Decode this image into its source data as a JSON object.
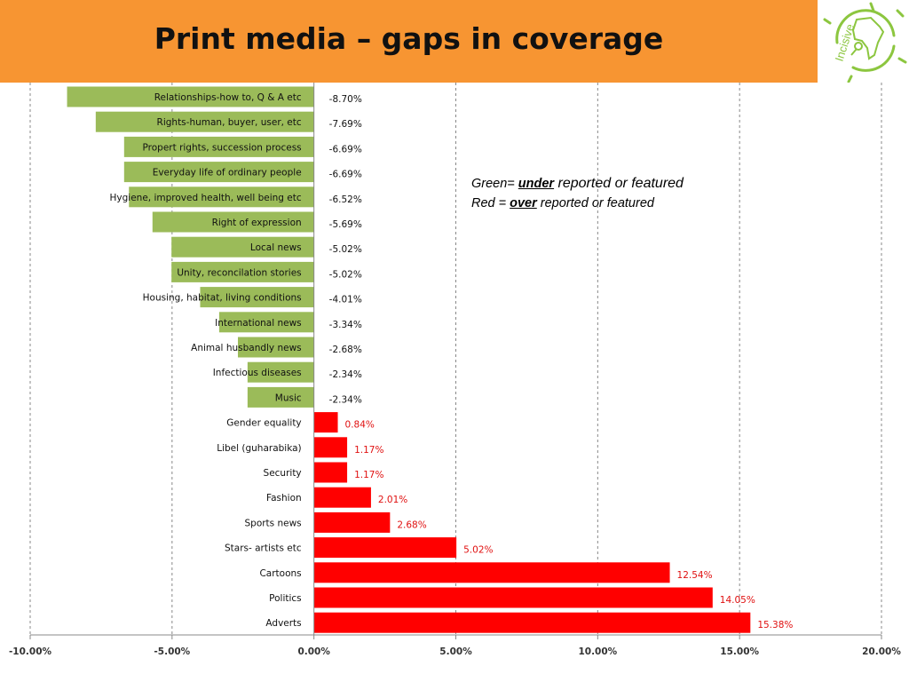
{
  "slide": {
    "title": "Print media – gaps in coverage",
    "logo_text": "Incisive"
  },
  "legend": {
    "green_prefix": "Green= ",
    "green_key": "under",
    "green_suffix": " reported or featured",
    "red_prefix": "Red = ",
    "red_key": "over",
    "red_suffix": " reported or featured"
  },
  "colors": {
    "negative": "#9bbb59",
    "positive": "#ff0000",
    "title_bar": "#f79532",
    "logo": "#8cc63f"
  },
  "chart_data": {
    "type": "bar",
    "orientation": "horizontal",
    "categories": [
      "Relationships-how  to, Q & A etc",
      "Rights-human,  buyer, user, etc",
      "Propert rights, succession  process",
      "Everyday life of ordinary people",
      "Hygiene, improved health, well being etc",
      "Right of expression",
      "Local news",
      "Unity, reconcilation  stories",
      "Housing, habitat,  living conditions",
      "International news",
      "Animal husbandly  news",
      "Infectious diseases",
      "Music",
      "Gender equality",
      "Libel (guharabika)",
      "Security",
      "Fashion",
      "Sports news",
      "Stars- artists etc",
      "Cartoons",
      "Politics",
      "Adverts"
    ],
    "values": [
      -8.7,
      -7.69,
      -6.69,
      -6.69,
      -6.52,
      -5.69,
      -5.02,
      -5.02,
      -4.01,
      -3.34,
      -2.68,
      -2.34,
      -2.34,
      0.84,
      1.17,
      1.17,
      2.01,
      2.68,
      5.02,
      12.54,
      14.05,
      15.38
    ],
    "value_labels": [
      "-8.70%",
      "-7.69%",
      "-6.69%",
      "-6.69%",
      "-6.52%",
      "-5.69%",
      "-5.02%",
      "-5.02%",
      "-4.01%",
      "-3.34%",
      "-2.68%",
      "-2.34%",
      "-2.34%",
      "0.84%",
      "1.17%",
      "1.17%",
      "2.01%",
      "2.68%",
      "5.02%",
      "12.54%",
      "14.05%",
      "15.38%"
    ],
    "xlim": [
      -10,
      20
    ],
    "x_ticks": [
      -10,
      -5,
      0,
      5,
      10,
      15,
      20
    ],
    "x_tick_labels": [
      "-10.00%",
      "-5.00%",
      "0.00%",
      "5.00%",
      "10.00%",
      "15.00%",
      "20.00%"
    ],
    "grid": "vertical-dashed",
    "title": "",
    "xlabel": "",
    "ylabel": ""
  }
}
